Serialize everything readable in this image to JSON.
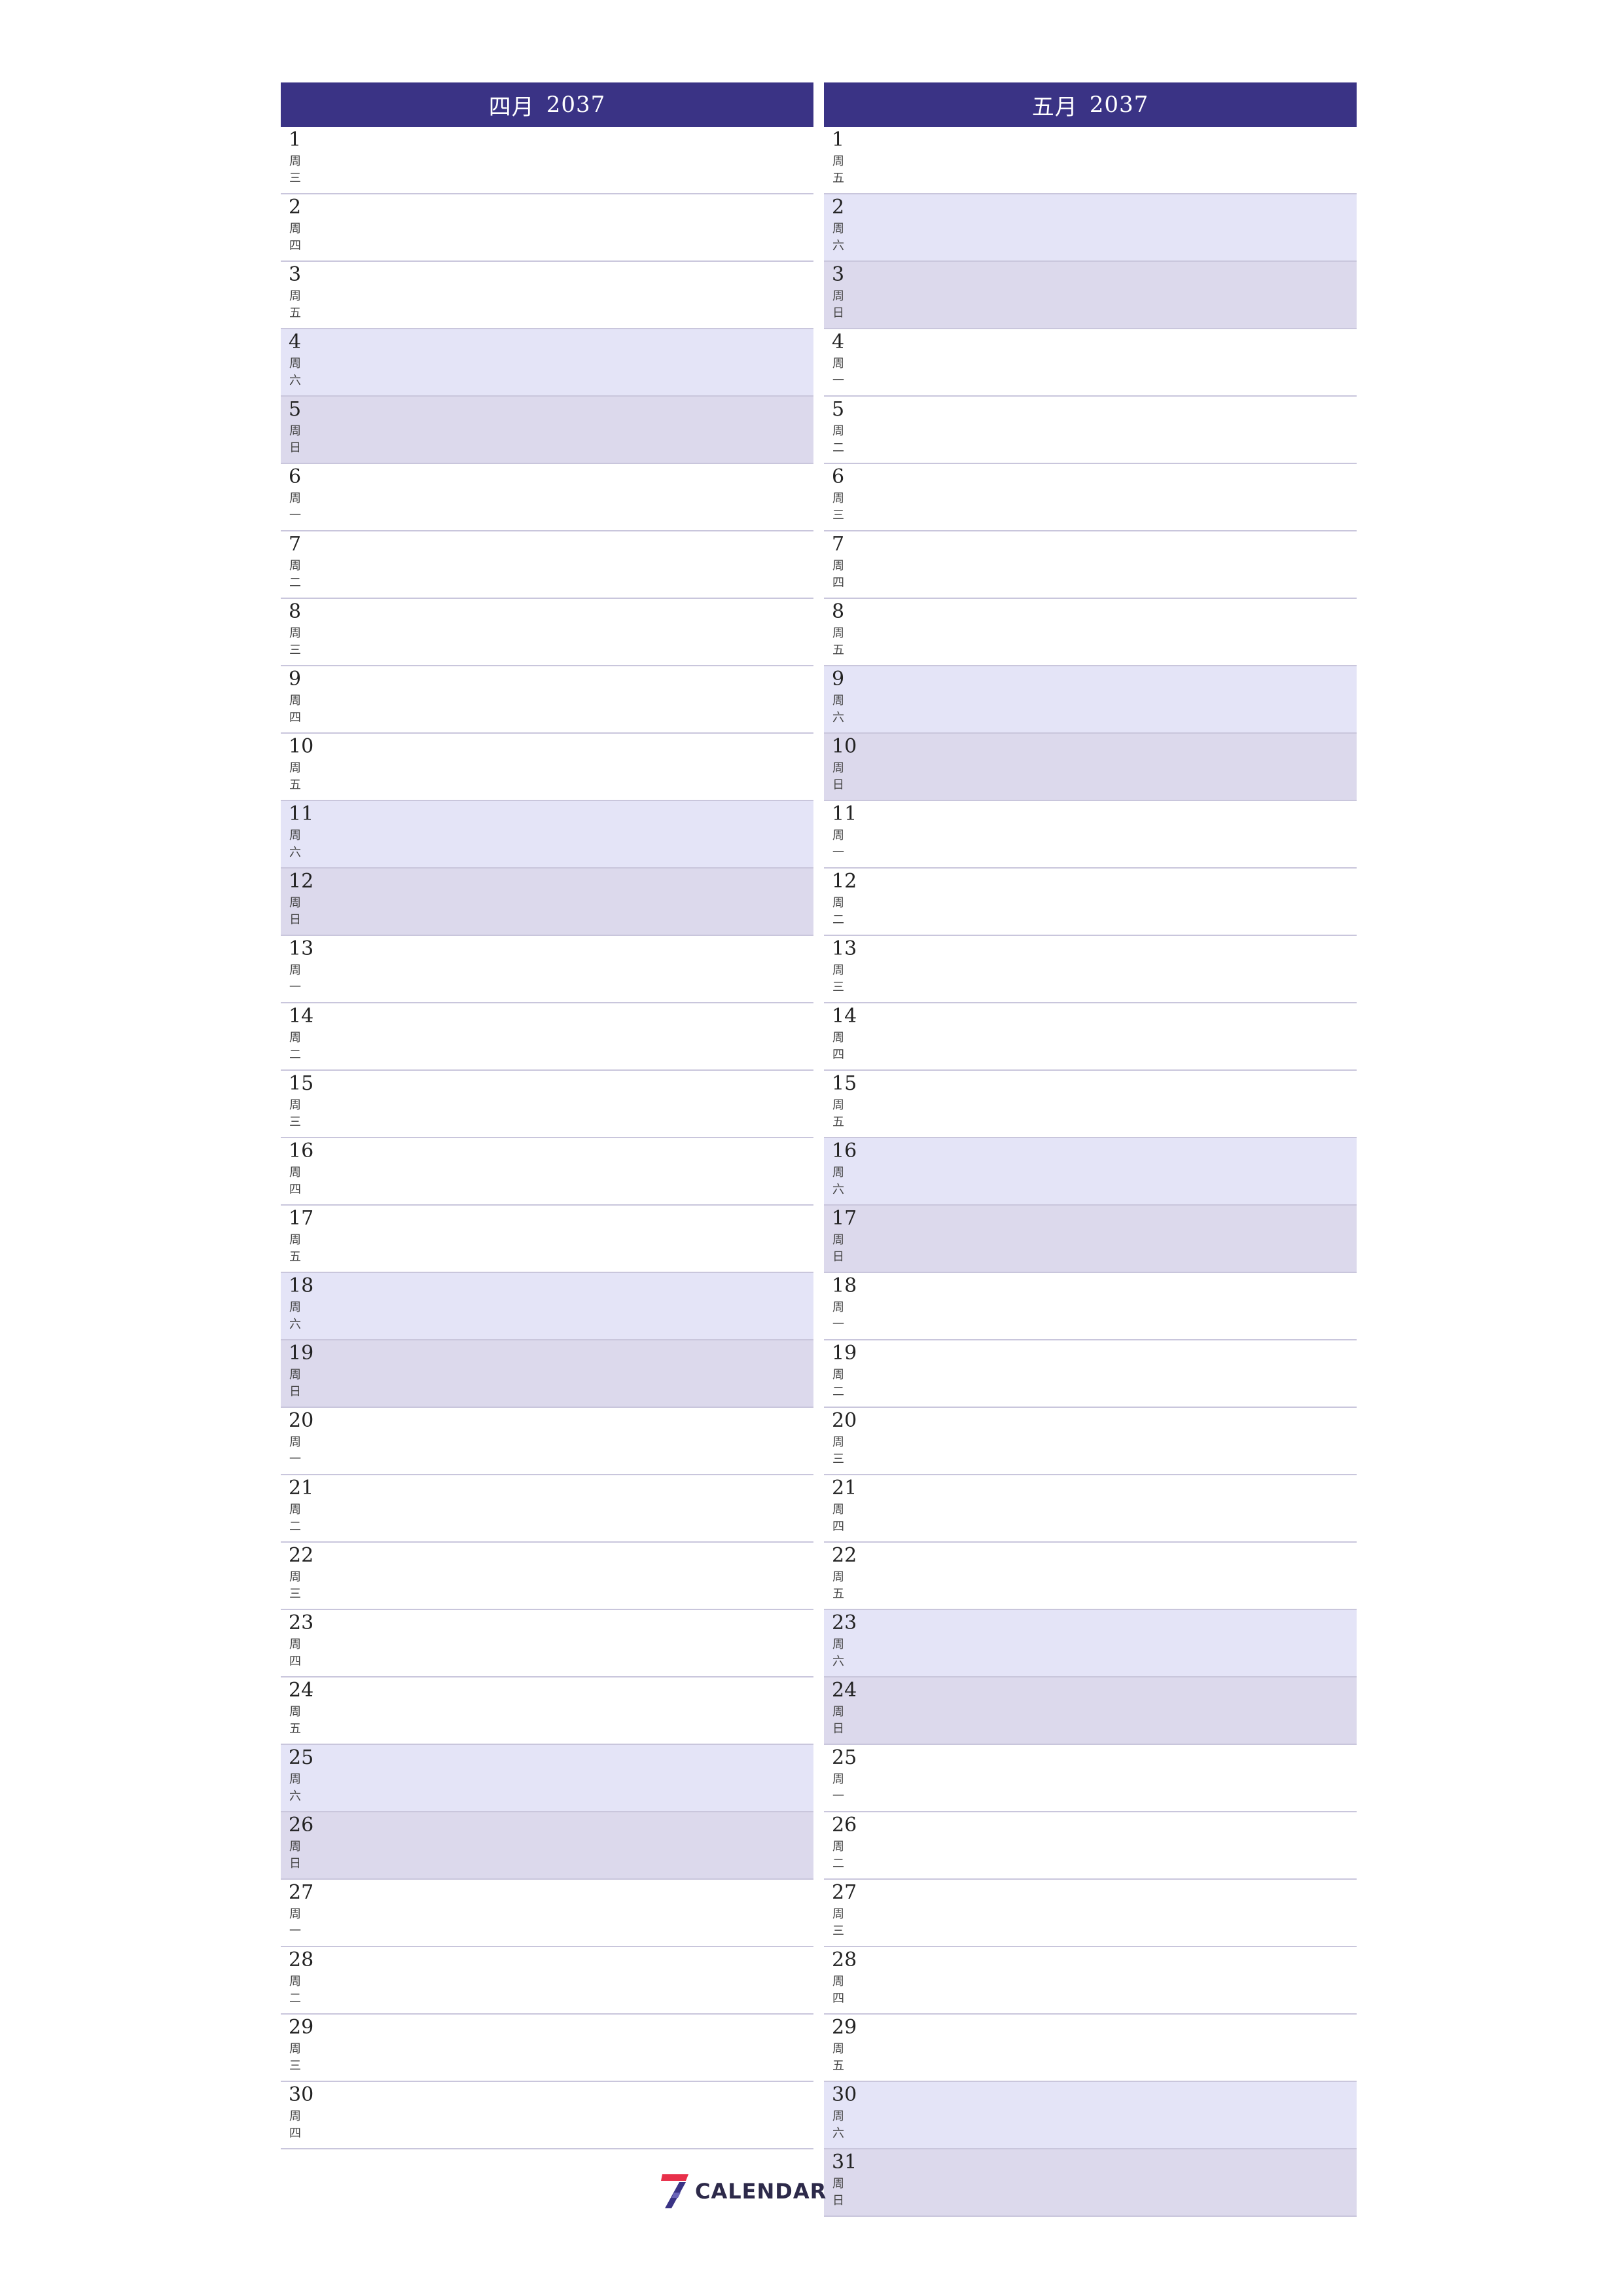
{
  "logo": {
    "text": "CALENDAR",
    "mark": "7"
  },
  "months": [
    {
      "title": "四月",
      "year": "2037",
      "days": [
        {
          "d": "1",
          "w1": "周",
          "w2": "三",
          "type": "weekday"
        },
        {
          "d": "2",
          "w1": "周",
          "w2": "四",
          "type": "weekday"
        },
        {
          "d": "3",
          "w1": "周",
          "w2": "五",
          "type": "weekday"
        },
        {
          "d": "4",
          "w1": "周",
          "w2": "六",
          "type": "sat"
        },
        {
          "d": "5",
          "w1": "周",
          "w2": "日",
          "type": "sun"
        },
        {
          "d": "6",
          "w1": "周",
          "w2": "一",
          "type": "weekday"
        },
        {
          "d": "7",
          "w1": "周",
          "w2": "二",
          "type": "weekday"
        },
        {
          "d": "8",
          "w1": "周",
          "w2": "三",
          "type": "weekday"
        },
        {
          "d": "9",
          "w1": "周",
          "w2": "四",
          "type": "weekday"
        },
        {
          "d": "10",
          "w1": "周",
          "w2": "五",
          "type": "weekday"
        },
        {
          "d": "11",
          "w1": "周",
          "w2": "六",
          "type": "sat"
        },
        {
          "d": "12",
          "w1": "周",
          "w2": "日",
          "type": "sun"
        },
        {
          "d": "13",
          "w1": "周",
          "w2": "一",
          "type": "weekday"
        },
        {
          "d": "14",
          "w1": "周",
          "w2": "二",
          "type": "weekday"
        },
        {
          "d": "15",
          "w1": "周",
          "w2": "三",
          "type": "weekday"
        },
        {
          "d": "16",
          "w1": "周",
          "w2": "四",
          "type": "weekday"
        },
        {
          "d": "17",
          "w1": "周",
          "w2": "五",
          "type": "weekday"
        },
        {
          "d": "18",
          "w1": "周",
          "w2": "六",
          "type": "sat"
        },
        {
          "d": "19",
          "w1": "周",
          "w2": "日",
          "type": "sun"
        },
        {
          "d": "20",
          "w1": "周",
          "w2": "一",
          "type": "weekday"
        },
        {
          "d": "21",
          "w1": "周",
          "w2": "二",
          "type": "weekday"
        },
        {
          "d": "22",
          "w1": "周",
          "w2": "三",
          "type": "weekday"
        },
        {
          "d": "23",
          "w1": "周",
          "w2": "四",
          "type": "weekday"
        },
        {
          "d": "24",
          "w1": "周",
          "w2": "五",
          "type": "weekday"
        },
        {
          "d": "25",
          "w1": "周",
          "w2": "六",
          "type": "sat"
        },
        {
          "d": "26",
          "w1": "周",
          "w2": "日",
          "type": "sun"
        },
        {
          "d": "27",
          "w1": "周",
          "w2": "一",
          "type": "weekday"
        },
        {
          "d": "28",
          "w1": "周",
          "w2": "二",
          "type": "weekday"
        },
        {
          "d": "29",
          "w1": "周",
          "w2": "三",
          "type": "weekday"
        },
        {
          "d": "30",
          "w1": "周",
          "w2": "四",
          "type": "weekday"
        }
      ]
    },
    {
      "title": "五月",
      "year": "2037",
      "days": [
        {
          "d": "1",
          "w1": "周",
          "w2": "五",
          "type": "weekday"
        },
        {
          "d": "2",
          "w1": "周",
          "w2": "六",
          "type": "sat"
        },
        {
          "d": "3",
          "w1": "周",
          "w2": "日",
          "type": "sun"
        },
        {
          "d": "4",
          "w1": "周",
          "w2": "一",
          "type": "weekday"
        },
        {
          "d": "5",
          "w1": "周",
          "w2": "二",
          "type": "weekday"
        },
        {
          "d": "6",
          "w1": "周",
          "w2": "三",
          "type": "weekday"
        },
        {
          "d": "7",
          "w1": "周",
          "w2": "四",
          "type": "weekday"
        },
        {
          "d": "8",
          "w1": "周",
          "w2": "五",
          "type": "weekday"
        },
        {
          "d": "9",
          "w1": "周",
          "w2": "六",
          "type": "sat"
        },
        {
          "d": "10",
          "w1": "周",
          "w2": "日",
          "type": "sun"
        },
        {
          "d": "11",
          "w1": "周",
          "w2": "一",
          "type": "weekday"
        },
        {
          "d": "12",
          "w1": "周",
          "w2": "二",
          "type": "weekday"
        },
        {
          "d": "13",
          "w1": "周",
          "w2": "三",
          "type": "weekday"
        },
        {
          "d": "14",
          "w1": "周",
          "w2": "四",
          "type": "weekday"
        },
        {
          "d": "15",
          "w1": "周",
          "w2": "五",
          "type": "weekday"
        },
        {
          "d": "16",
          "w1": "周",
          "w2": "六",
          "type": "sat"
        },
        {
          "d": "17",
          "w1": "周",
          "w2": "日",
          "type": "sun"
        },
        {
          "d": "18",
          "w1": "周",
          "w2": "一",
          "type": "weekday"
        },
        {
          "d": "19",
          "w1": "周",
          "w2": "二",
          "type": "weekday"
        },
        {
          "d": "20",
          "w1": "周",
          "w2": "三",
          "type": "weekday"
        },
        {
          "d": "21",
          "w1": "周",
          "w2": "四",
          "type": "weekday"
        },
        {
          "d": "22",
          "w1": "周",
          "w2": "五",
          "type": "weekday"
        },
        {
          "d": "23",
          "w1": "周",
          "w2": "六",
          "type": "sat"
        },
        {
          "d": "24",
          "w1": "周",
          "w2": "日",
          "type": "sun"
        },
        {
          "d": "25",
          "w1": "周",
          "w2": "一",
          "type": "weekday"
        },
        {
          "d": "26",
          "w1": "周",
          "w2": "二",
          "type": "weekday"
        },
        {
          "d": "27",
          "w1": "周",
          "w2": "三",
          "type": "weekday"
        },
        {
          "d": "28",
          "w1": "周",
          "w2": "四",
          "type": "weekday"
        },
        {
          "d": "29",
          "w1": "周",
          "w2": "五",
          "type": "weekday"
        },
        {
          "d": "30",
          "w1": "周",
          "w2": "六",
          "type": "sat"
        },
        {
          "d": "31",
          "w1": "周",
          "w2": "日",
          "type": "sun"
        }
      ]
    }
  ],
  "colors": {
    "header_bg": "#3a3385",
    "saturday_bg": "#e4e4f7",
    "sunday_bg": "#dcd9ec",
    "row_divider": "#c9c6dc"
  }
}
